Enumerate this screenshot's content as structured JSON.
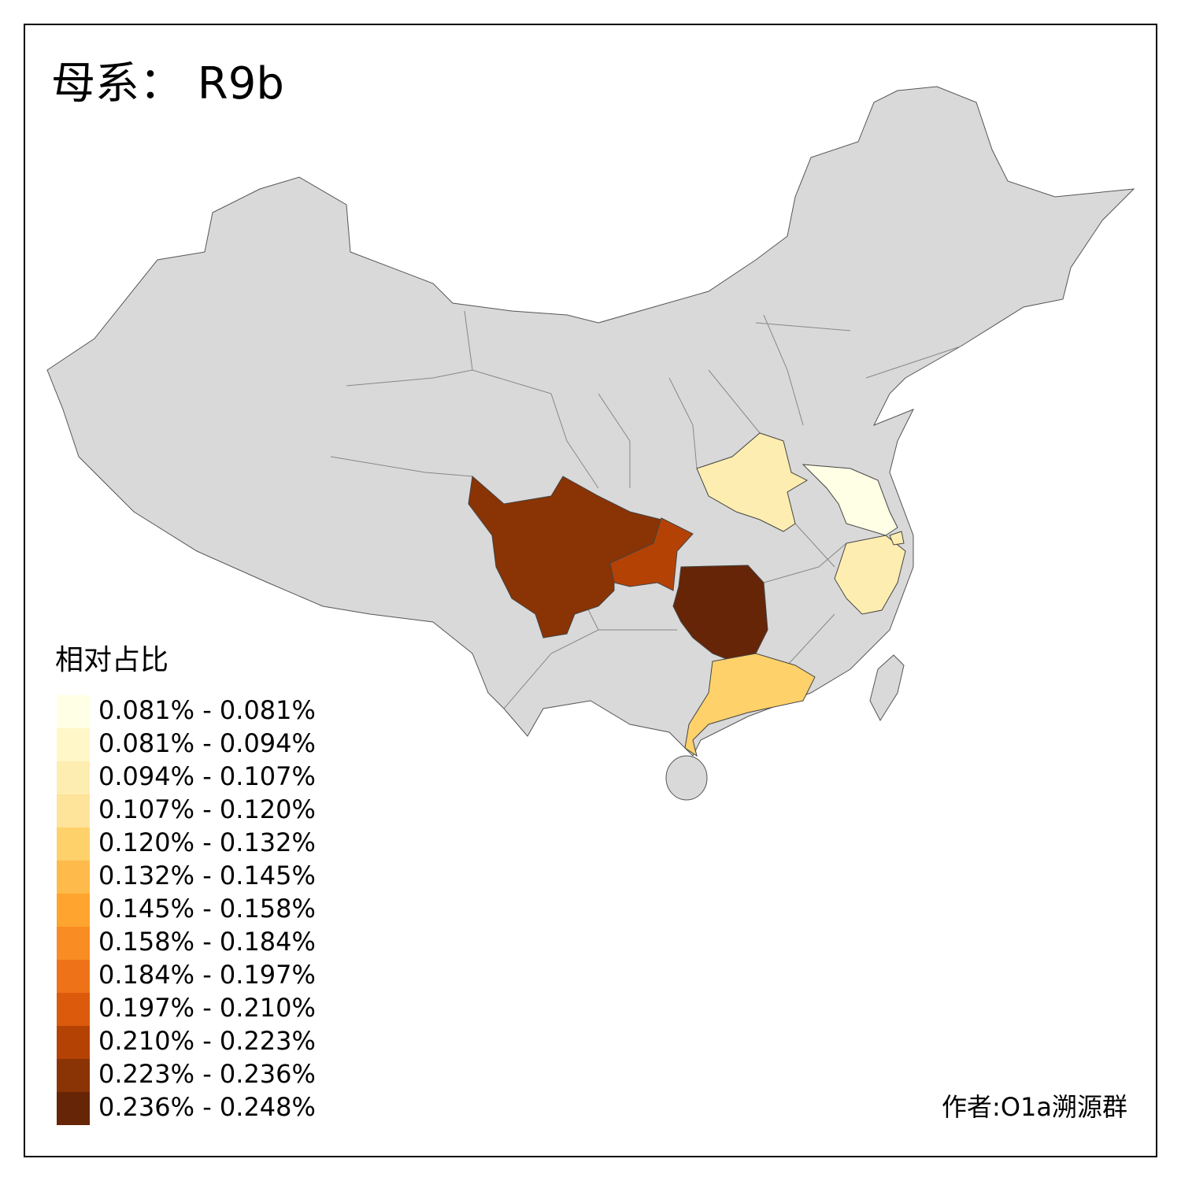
{
  "title": "母系： R9b",
  "legend": {
    "title": "相对占比",
    "items": [
      {
        "label": "0.081% - 0.081%",
        "color": "#ffffe5"
      },
      {
        "label": "0.081% - 0.094%",
        "color": "#fff7c7"
      },
      {
        "label": "0.094% - 0.107%",
        "color": "#feedb0"
      },
      {
        "label": "0.107% - 0.120%",
        "color": "#fee39a"
      },
      {
        "label": "0.120% - 0.132%",
        "color": "#fed16a"
      },
      {
        "label": "0.132% - 0.145%",
        "color": "#feba4a"
      },
      {
        "label": "0.145% - 0.158%",
        "color": "#fea42f"
      },
      {
        "label": "0.158% - 0.184%",
        "color": "#f98c23"
      },
      {
        "label": "0.184% - 0.197%",
        "color": "#ee7318"
      },
      {
        "label": "0.197% - 0.210%",
        "color": "#db5a0b"
      },
      {
        "label": "0.210% - 0.223%",
        "color": "#b54205"
      },
      {
        "label": "0.223% - 0.236%",
        "color": "#8a3304"
      },
      {
        "label": "0.236% - 0.248%",
        "color": "#662506"
      }
    ]
  },
  "credit": "作者:O1a溯源群"
}
